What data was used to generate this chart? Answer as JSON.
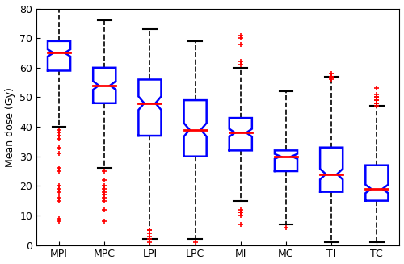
{
  "categories": [
    "MPI",
    "MPC",
    "LPI",
    "LPC",
    "MI",
    "MC",
    "TI",
    "TC"
  ],
  "ylabel": "Mean dose (Gy)",
  "ylim": [
    0,
    80
  ],
  "yticks": [
    0,
    10,
    20,
    30,
    40,
    50,
    60,
    70,
    80
  ],
  "box_color": "#0000FF",
  "median_color": "#FF0000",
  "whisker_color": "#000000",
  "outlier_color": "#FF0000",
  "background_color": "#FFFFFF",
  "figsize": [
    5.0,
    3.27
  ],
  "dpi": 100,
  "box_stats": [
    {
      "med": 65,
      "q1": 59,
      "q3": 69,
      "whislo": 40,
      "whishi": 80,
      "fliers_lo": [
        39,
        38,
        37,
        36,
        33,
        31,
        26,
        25,
        20,
        19,
        18,
        16,
        15,
        9,
        8
      ],
      "fliers_hi": []
    },
    {
      "med": 54,
      "q1": 48,
      "q3": 60,
      "whislo": 26,
      "whishi": 76,
      "fliers_lo": [
        25,
        22,
        20,
        19,
        18,
        17,
        16,
        15,
        12,
        8
      ],
      "fliers_hi": []
    },
    {
      "med": 48,
      "q1": 37,
      "q3": 56,
      "whislo": 2,
      "whishi": 73,
      "fliers_lo": [
        5,
        5,
        4,
        3,
        2,
        1
      ],
      "fliers_hi": []
    },
    {
      "med": 39,
      "q1": 30,
      "q3": 49,
      "whislo": 2,
      "whishi": 69,
      "fliers_lo": [
        1
      ],
      "fliers_hi": []
    },
    {
      "med": 38,
      "q1": 32,
      "q3": 43,
      "whislo": 15,
      "whishi": 60,
      "fliers_lo": [
        12,
        11,
        11,
        10,
        7
      ],
      "fliers_hi": [
        71,
        70,
        68,
        62,
        61
      ]
    },
    {
      "med": 30,
      "q1": 25,
      "q3": 32,
      "whislo": 7,
      "whishi": 52,
      "fliers_lo": [
        6
      ],
      "fliers_hi": []
    },
    {
      "med": 24,
      "q1": 18,
      "q3": 33,
      "whislo": 1,
      "whishi": 57,
      "fliers_lo": [],
      "fliers_hi": [
        58,
        57,
        57,
        56
      ]
    },
    {
      "med": 19,
      "q1": 15,
      "q3": 27,
      "whislo": 1,
      "whishi": 47,
      "fliers_lo": [],
      "fliers_hi": [
        53,
        51,
        50,
        50,
        49,
        49,
        48,
        48,
        48,
        47
      ]
    }
  ]
}
